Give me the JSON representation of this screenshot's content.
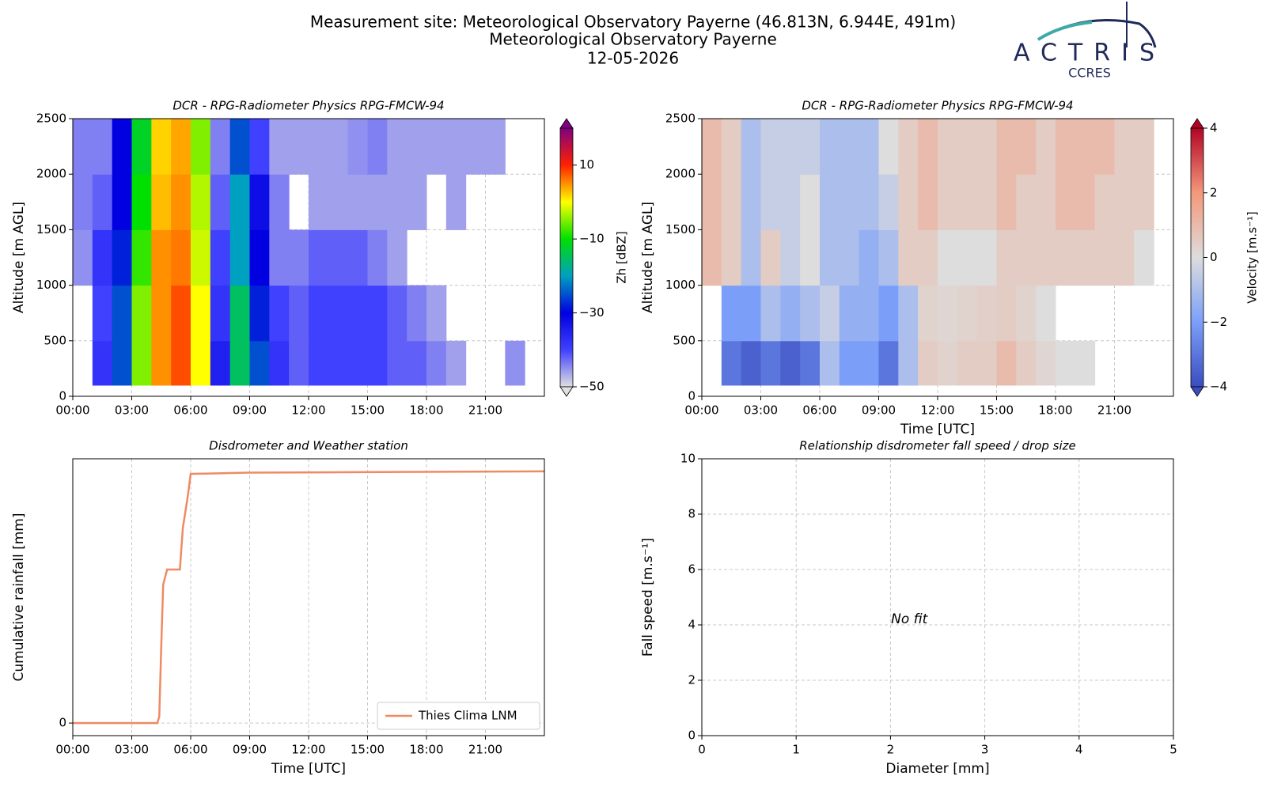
{
  "header": {
    "title_lines": [
      "Measurement site: Meteorological Observatory Payerne (46.813N, 6.944E, 491m)",
      "Meteorological Observatory Payerne",
      "12-05-2026"
    ],
    "logo": {
      "name": "ACTRIS",
      "sub": "CCRES"
    }
  },
  "chart_data": [
    {
      "type": "heatmap",
      "title": "DCR - RPG-Radiometer Physics RPG-FMCW-94",
      "ylabel": "Altitude [m AGL]",
      "xlim": [
        0,
        24
      ],
      "ylim": [
        0,
        2500
      ],
      "xticks": [
        {
          "value": 0,
          "label": "00:00"
        },
        {
          "value": 3,
          "label": "03:00"
        },
        {
          "value": 6,
          "label": "06:00"
        },
        {
          "value": 9,
          "label": "09:00"
        },
        {
          "value": 12,
          "label": "12:00"
        },
        {
          "value": 15,
          "label": "15:00"
        },
        {
          "value": 18,
          "label": "18:00"
        },
        {
          "value": 21,
          "label": "21:00"
        }
      ],
      "yticks": [
        0,
        500,
        1000,
        1500,
        2000,
        2500
      ],
      "grid": true,
      "x_bins": [
        0,
        1,
        2,
        3,
        4,
        5,
        6,
        7,
        8,
        9,
        10,
        11,
        12,
        13,
        14,
        15,
        16,
        17,
        18,
        19,
        20,
        21,
        22,
        23,
        24
      ],
      "y_bins": [
        100,
        500,
        1000,
        1500,
        2000,
        2500
      ],
      "values": [
        [
          null,
          -38,
          -25,
          -5,
          5,
          8,
          0,
          -35,
          -15,
          -25,
          -38,
          -42,
          -40,
          -40,
          -40,
          -40,
          -42,
          -42,
          -44,
          -46,
          null,
          null,
          -45,
          null
        ],
        [
          null,
          -40,
          -25,
          -5,
          5,
          8,
          0,
          -38,
          -15,
          -28,
          -40,
          -42,
          -40,
          -40,
          -40,
          -40,
          -42,
          -44,
          -46,
          null,
          null,
          null,
          null,
          null
        ],
        [
          -45,
          -38,
          -28,
          -8,
          5,
          6,
          -2,
          -40,
          -20,
          -30,
          -44,
          -44,
          -42,
          -42,
          -42,
          -44,
          -46,
          null,
          null,
          null,
          null,
          null,
          null,
          null
        ],
        [
          -44,
          -42,
          -30,
          -10,
          3,
          5,
          -3,
          -42,
          -20,
          -32,
          -44,
          null,
          -46,
          -46,
          -46,
          -46,
          -46,
          -46,
          null,
          -46,
          null,
          null,
          null,
          null
        ],
        [
          -44,
          -44,
          -30,
          -12,
          2,
          4,
          -5,
          -44,
          -25,
          -40,
          -46,
          -46,
          -46,
          -46,
          -45,
          -44,
          -46,
          -46,
          -46,
          -46,
          -46,
          -46,
          null,
          null
        ]
      ],
      "colorbar_label": "Zh [dBZ]",
      "clim": [
        -50,
        20
      ],
      "cticks": [
        {
          "value": -50,
          "label": "−50"
        },
        {
          "value": -30,
          "label": "−30"
        },
        {
          "value": -10,
          "label": "−10"
        },
        10
      ],
      "colormap": [
        "#e0e0e0",
        "#4040ff",
        "#0000e0",
        "#00a0c0",
        "#00e000",
        "#ffff00",
        "#ff2000",
        "#800080"
      ]
    },
    {
      "type": "heatmap",
      "title": "DCR - RPG-Radiometer Physics RPG-FMCW-94",
      "ylabel": "Altitude [m AGL]",
      "xlabel": "Time [UTC]",
      "xlim": [
        0,
        24
      ],
      "ylim": [
        0,
        2500
      ],
      "xticks": [
        {
          "value": 0,
          "label": "00:00"
        },
        {
          "value": 3,
          "label": "03:00"
        },
        {
          "value": 6,
          "label": "06:00"
        },
        {
          "value": 9,
          "label": "09:00"
        },
        {
          "value": 12,
          "label": "12:00"
        },
        {
          "value": 15,
          "label": "15:00"
        },
        {
          "value": 18,
          "label": "18:00"
        },
        {
          "value": 21,
          "label": "21:00"
        }
      ],
      "yticks": [
        0,
        500,
        1000,
        1500,
        2000,
        2500
      ],
      "grid": true,
      "x_bins": [
        0,
        1,
        2,
        3,
        4,
        5,
        6,
        7,
        8,
        9,
        10,
        11,
        12,
        13,
        14,
        15,
        16,
        17,
        18,
        19,
        20,
        21,
        22,
        23,
        24
      ],
      "y_bins": [
        100,
        500,
        1000,
        1500,
        2000,
        2500
      ],
      "values": [
        [
          null,
          -3,
          -3.5,
          -3,
          -3.5,
          -3,
          -1,
          -2,
          -2,
          -3,
          -1,
          0.5,
          0.3,
          0.5,
          0.5,
          1,
          0.5,
          0.2,
          0,
          0,
          null,
          null,
          null,
          null
        ],
        [
          null,
          -2,
          -2,
          -1,
          -1.5,
          -1,
          -0.5,
          -1.5,
          -1.5,
          -2,
          -1,
          0.3,
          0.2,
          0.3,
          0.4,
          0.5,
          0.3,
          0,
          null,
          null,
          null,
          null,
          null,
          null
        ],
        [
          1,
          0.5,
          -1,
          0.5,
          -0.5,
          0,
          -1,
          -1,
          -1.5,
          -1,
          0.5,
          0.5,
          0,
          0,
          0,
          0.5,
          0.5,
          0.5,
          0.5,
          0.5,
          0.5,
          0.5,
          0,
          null
        ],
        [
          1,
          0.5,
          -1,
          -0.5,
          -0.5,
          0,
          -1,
          -1,
          -1,
          -0.5,
          0.5,
          1,
          0.5,
          0.5,
          0.5,
          1,
          0.5,
          0.5,
          1,
          1,
          0.5,
          0.5,
          0.5,
          null
        ],
        [
          1,
          0.5,
          -1,
          -0.5,
          -0.5,
          -0.5,
          -1,
          -1,
          -1,
          0,
          0.5,
          1,
          0.5,
          0.5,
          0.5,
          1,
          1,
          0.5,
          1,
          1,
          1,
          0.5,
          0.5,
          null
        ]
      ],
      "colorbar_label": "Velocity [m.s⁻¹]",
      "clim": [
        -4,
        4
      ],
      "cticks": [
        {
          "value": -4,
          "label": "−4"
        },
        {
          "value": -2,
          "label": "−2"
        },
        0,
        2,
        4
      ],
      "colormap": [
        "#3b4cc0",
        "#7b9ff9",
        "#dddddd",
        "#f4987a",
        "#b40426"
      ]
    },
    {
      "type": "line",
      "title": "Disdrometer and Weather station",
      "ylabel": "Cumulative rainfall [mm]",
      "xlabel": "Time [UTC]",
      "xlim": [
        0,
        24
      ],
      "ylim": [
        -0.1,
        2.1
      ],
      "xticks": [
        {
          "value": 0,
          "label": "00:00"
        },
        {
          "value": 3,
          "label": "03:00"
        },
        {
          "value": 6,
          "label": "06:00"
        },
        {
          "value": 9,
          "label": "09:00"
        },
        {
          "value": 12,
          "label": "12:00"
        },
        {
          "value": 15,
          "label": "15:00"
        },
        {
          "value": 18,
          "label": "18:00"
        },
        {
          "value": 21,
          "label": "21:00"
        }
      ],
      "yticks": [
        0
      ],
      "grid": true,
      "legend": "lower right",
      "x": [
        0,
        4.3,
        4.4,
        4.5,
        4.6,
        4.8,
        5.45,
        5.6,
        5.85,
        6.0,
        9.0,
        24
      ],
      "series": [
        {
          "name": "Thies Clima LNM",
          "color": "#ef8a62",
          "values": [
            0,
            0,
            0.05,
            0.6,
            1.1,
            1.22,
            1.22,
            1.55,
            1.8,
            1.98,
            1.99,
            2.0
          ]
        }
      ]
    },
    {
      "type": "scatter",
      "title": "Relationship disdrometer fall speed / drop size",
      "ylabel": "Fall speed [m.s⁻¹]",
      "xlabel": "Diameter [mm]",
      "xlim": [
        0,
        5
      ],
      "ylim": [
        0,
        10
      ],
      "xticks": [
        0,
        1,
        2,
        3,
        4,
        5
      ],
      "yticks": [
        0,
        2,
        4,
        6,
        8,
        10
      ],
      "grid": true,
      "annotation": "No fit"
    }
  ]
}
